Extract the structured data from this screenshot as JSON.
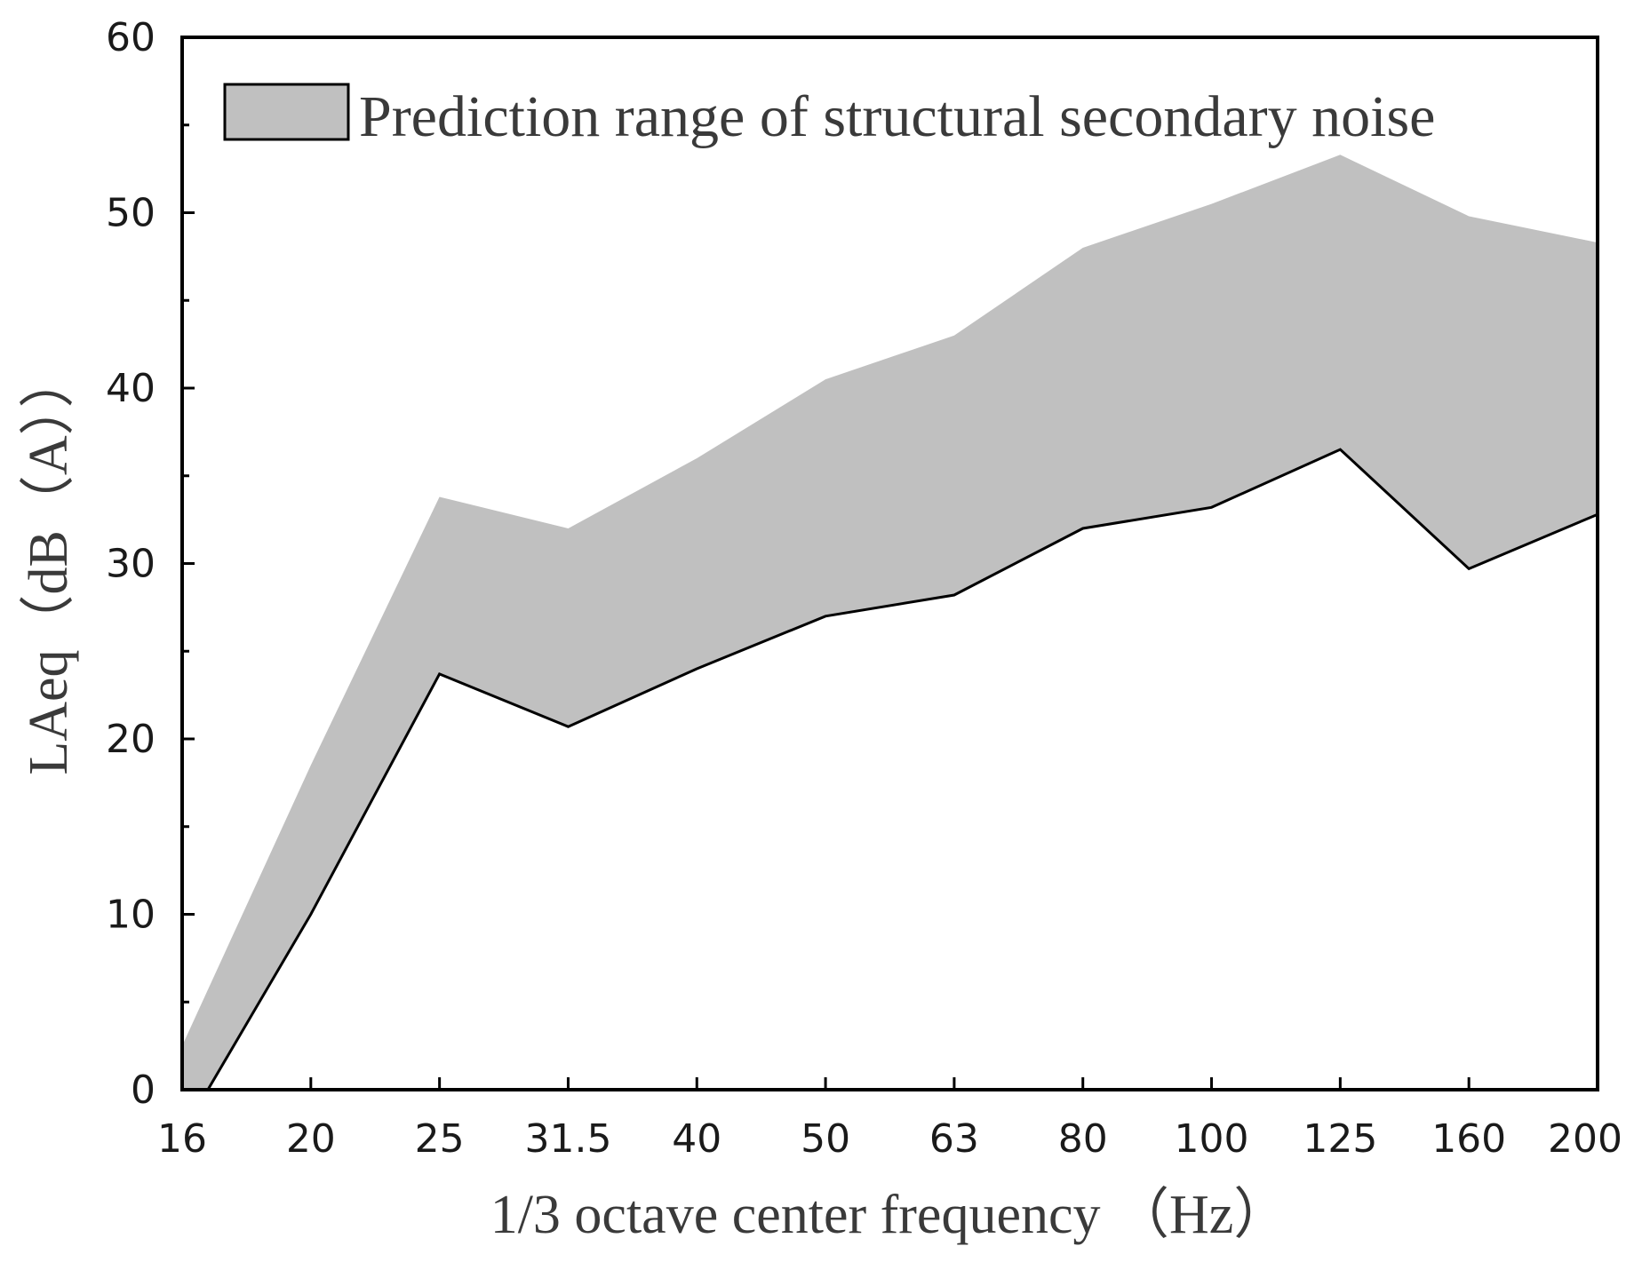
{
  "chart_data": {
    "type": "area",
    "title": "",
    "xlabel": "1/3 octave center frequency  （Hz）",
    "ylabel": "LAeq（dB（A））",
    "ylim": [
      0,
      60
    ],
    "yticks": [
      0,
      10,
      20,
      30,
      40,
      50,
      60
    ],
    "categories": [
      "16",
      "20",
      "25",
      "31.5",
      "40",
      "50",
      "63",
      "80",
      "100",
      "125",
      "160",
      "200"
    ],
    "grid": false,
    "legend_position": "top-left",
    "series": [
      {
        "name": "Prediction range of structural secondary noise",
        "upper": [
          2.5,
          18.5,
          33.8,
          32.0,
          36.0,
          40.5,
          43.0,
          48.0,
          50.5,
          53.3,
          49.8,
          48.3
        ],
        "lower": [
          -2.5,
          10.0,
          23.7,
          20.7,
          24.0,
          27.0,
          28.2,
          32.0,
          33.2,
          36.5,
          29.7,
          32.8
        ]
      }
    ],
    "colors": {
      "fill": "#c0c0c0",
      "line": "#000000",
      "frame": "#000000"
    }
  }
}
